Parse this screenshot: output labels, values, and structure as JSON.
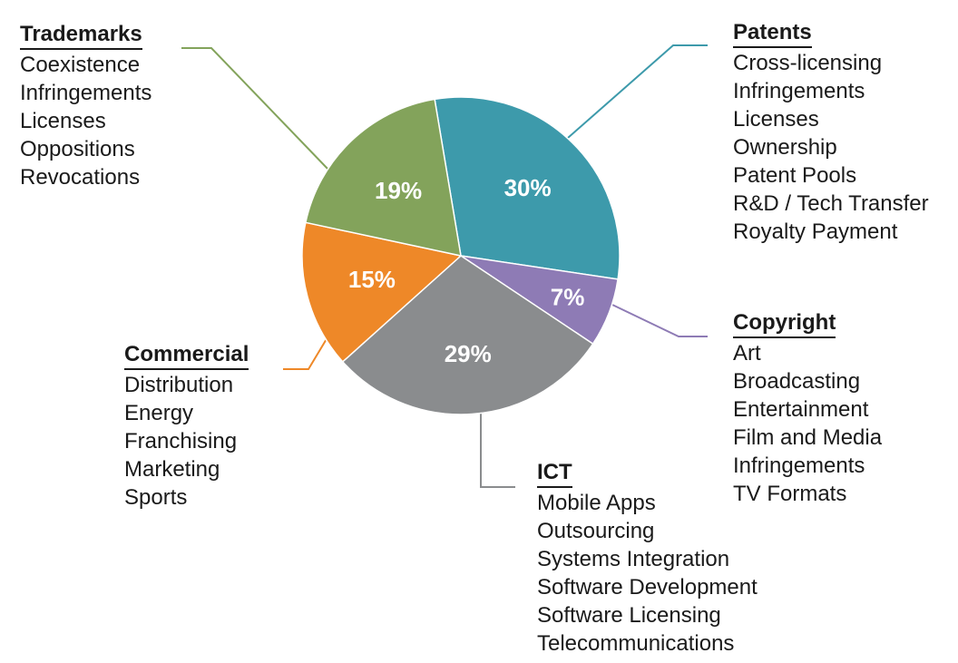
{
  "chart_data": {
    "type": "pie",
    "slices": [
      {
        "key": "patents",
        "label": "Patents",
        "value": 30,
        "value_label": "30%",
        "color": "#3d9aab",
        "items": [
          "Cross-licensing",
          "Infringements",
          "Licenses",
          "Ownership",
          "Patent Pools",
          "R&D / Tech Transfer",
          "Royalty Payment"
        ]
      },
      {
        "key": "copyright",
        "label": "Copyright",
        "value": 7,
        "value_label": "7%",
        "color": "#8e7bb5",
        "items": [
          "Art",
          "Broadcasting",
          "Entertainment",
          "Film and Media",
          "Infringements",
          "TV Formats"
        ]
      },
      {
        "key": "ict",
        "label": "ICT",
        "value": 29,
        "value_label": "29%",
        "color": "#8a8c8e",
        "items": [
          "Mobile Apps",
          "Outsourcing",
          "Systems Integration",
          "Software Development",
          "Software Licensing",
          "Telecommunications"
        ]
      },
      {
        "key": "commercial",
        "label": "Commercial",
        "value": 15,
        "value_label": "15%",
        "color": "#ee8828",
        "items": [
          "Distribution",
          "Energy",
          "Franchising",
          "Marketing",
          "Sports"
        ]
      },
      {
        "key": "trademarks",
        "label": "Trademarks",
        "value": 19,
        "value_label": "19%",
        "color": "#83a35b",
        "items": [
          "Coexistence",
          "Infringements",
          "Licenses",
          "Oppositions",
          "Revocations"
        ]
      }
    ]
  }
}
